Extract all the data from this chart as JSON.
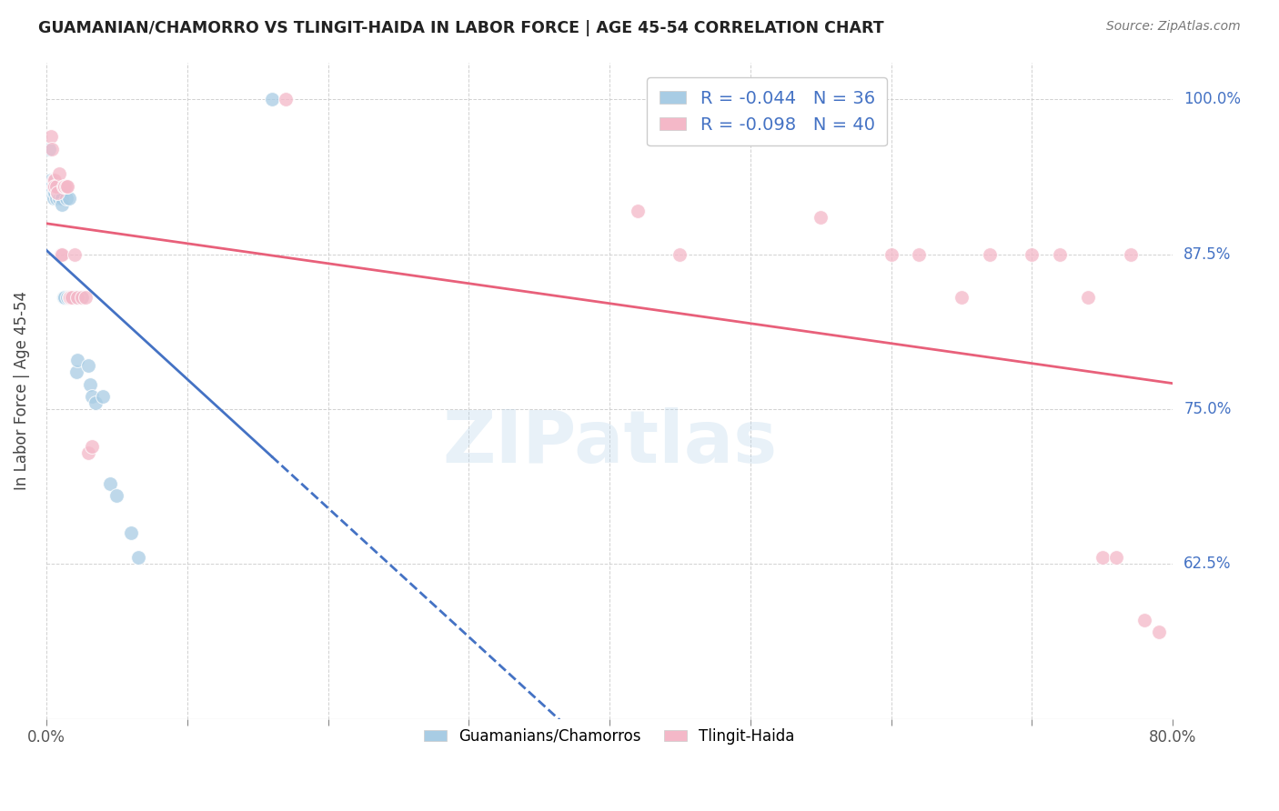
{
  "title": "GUAMANIAN/CHAMORRO VS TLINGIT-HAIDA IN LABOR FORCE | AGE 45-54 CORRELATION CHART",
  "source": "Source: ZipAtlas.com",
  "ylabel": "In Labor Force | Age 45-54",
  "xlim": [
    0.0,
    0.8
  ],
  "ylim": [
    0.5,
    1.03
  ],
  "x_ticks": [
    0.0,
    0.1,
    0.2,
    0.3,
    0.4,
    0.5,
    0.6,
    0.7,
    0.8
  ],
  "x_tick_labels": [
    "0.0%",
    "",
    "",
    "",
    "",
    "",
    "",
    "",
    "80.0%"
  ],
  "y_ticks": [
    0.625,
    0.75,
    0.875,
    1.0
  ],
  "y_tick_labels": [
    "62.5%",
    "75.0%",
    "87.5%",
    "100.0%"
  ],
  "r_blue": -0.044,
  "n_blue": 36,
  "r_pink": -0.098,
  "n_pink": 40,
  "legend_label_blue": "Guamanians/Chamorros",
  "legend_label_pink": "Tlingit-Haida",
  "watermark": "ZIPatlas",
  "blue_color": "#a8cce4",
  "pink_color": "#f4b8c8",
  "blue_line_color": "#4472c4",
  "pink_line_color": "#e8607a",
  "blue_scatter": [
    [
      0.002,
      0.96
    ],
    [
      0.003,
      0.935
    ],
    [
      0.003,
      0.925
    ],
    [
      0.004,
      0.93
    ],
    [
      0.004,
      0.925
    ],
    [
      0.005,
      0.925
    ],
    [
      0.005,
      0.92
    ],
    [
      0.006,
      0.925
    ],
    [
      0.007,
      0.93
    ],
    [
      0.007,
      0.92
    ],
    [
      0.008,
      0.925
    ],
    [
      0.009,
      0.925
    ],
    [
      0.009,
      0.92
    ],
    [
      0.01,
      0.925
    ],
    [
      0.011,
      0.92
    ],
    [
      0.011,
      0.915
    ],
    [
      0.012,
      0.84
    ],
    [
      0.013,
      0.84
    ],
    [
      0.014,
      0.92
    ],
    [
      0.015,
      0.84
    ],
    [
      0.016,
      0.92
    ],
    [
      0.018,
      0.84
    ],
    [
      0.02,
      0.84
    ],
    [
      0.021,
      0.78
    ],
    [
      0.022,
      0.79
    ],
    [
      0.025,
      0.84
    ],
    [
      0.03,
      0.785
    ],
    [
      0.031,
      0.77
    ],
    [
      0.032,
      0.76
    ],
    [
      0.035,
      0.755
    ],
    [
      0.04,
      0.76
    ],
    [
      0.045,
      0.69
    ],
    [
      0.05,
      0.68
    ],
    [
      0.06,
      0.65
    ],
    [
      0.065,
      0.63
    ],
    [
      0.16,
      1.0
    ]
  ],
  "pink_scatter": [
    [
      0.003,
      0.97
    ],
    [
      0.004,
      0.96
    ],
    [
      0.005,
      0.935
    ],
    [
      0.005,
      0.93
    ],
    [
      0.006,
      0.935
    ],
    [
      0.006,
      0.93
    ],
    [
      0.007,
      0.93
    ],
    [
      0.008,
      0.925
    ],
    [
      0.009,
      0.94
    ],
    [
      0.01,
      0.875
    ],
    [
      0.011,
      0.875
    ],
    [
      0.012,
      0.93
    ],
    [
      0.013,
      0.93
    ],
    [
      0.014,
      0.93
    ],
    [
      0.015,
      0.93
    ],
    [
      0.016,
      0.84
    ],
    [
      0.017,
      0.84
    ],
    [
      0.018,
      0.84
    ],
    [
      0.02,
      0.875
    ],
    [
      0.022,
      0.84
    ],
    [
      0.025,
      0.84
    ],
    [
      0.028,
      0.84
    ],
    [
      0.03,
      0.715
    ],
    [
      0.032,
      0.72
    ],
    [
      0.17,
      1.0
    ],
    [
      0.42,
      0.91
    ],
    [
      0.45,
      0.875
    ],
    [
      0.55,
      0.905
    ],
    [
      0.6,
      0.875
    ],
    [
      0.62,
      0.875
    ],
    [
      0.65,
      0.84
    ],
    [
      0.67,
      0.875
    ],
    [
      0.7,
      0.875
    ],
    [
      0.72,
      0.875
    ],
    [
      0.74,
      0.84
    ],
    [
      0.75,
      0.63
    ],
    [
      0.76,
      0.63
    ],
    [
      0.77,
      0.875
    ],
    [
      0.78,
      0.58
    ],
    [
      0.79,
      0.57
    ]
  ]
}
